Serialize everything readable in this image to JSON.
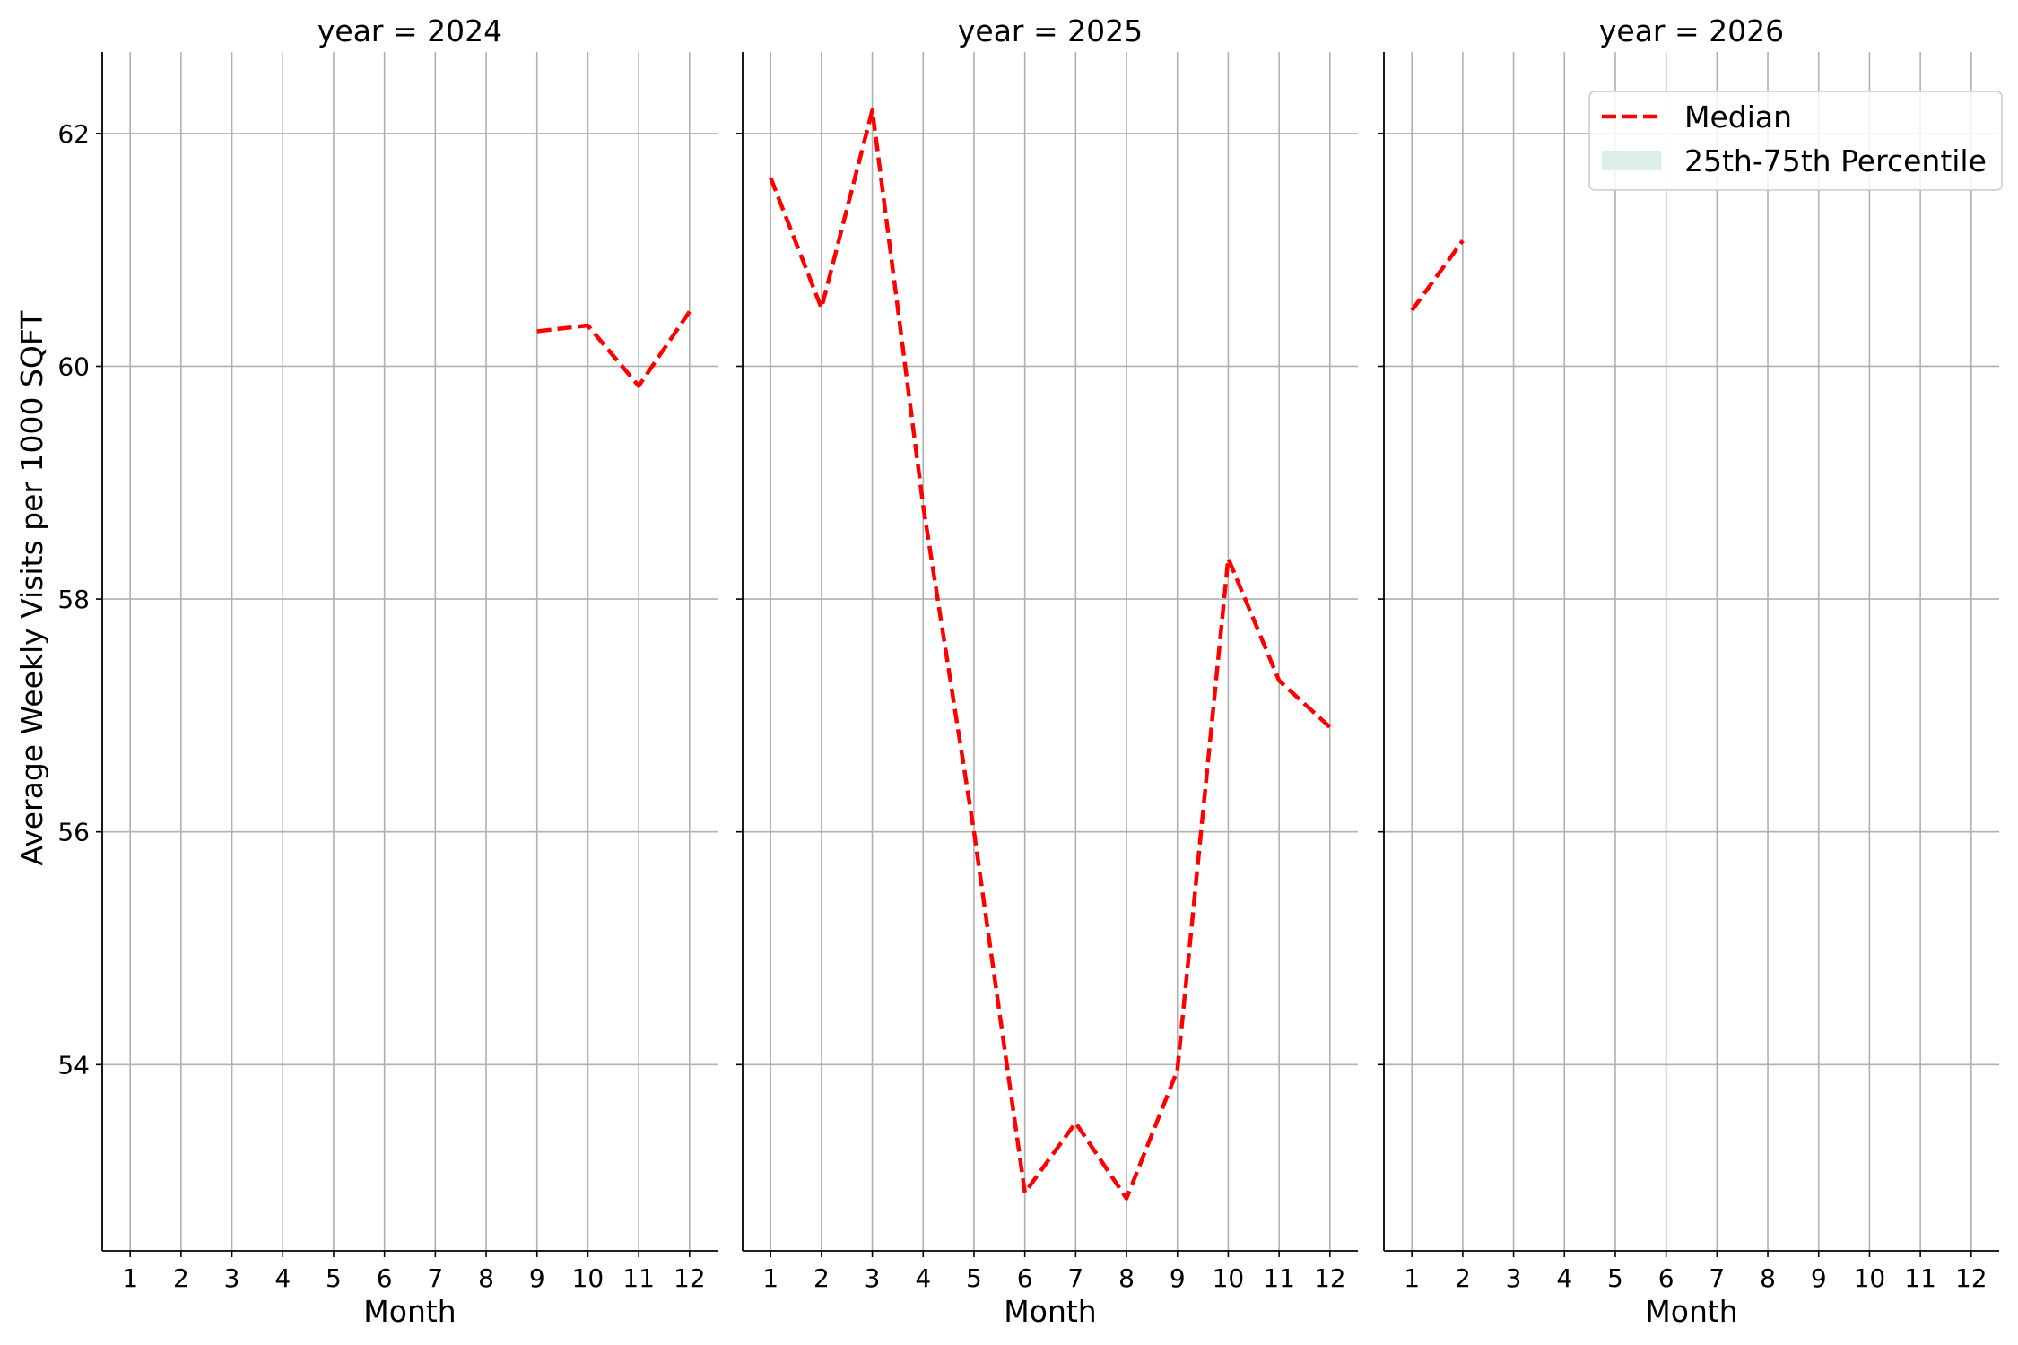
{
  "chart_data": {
    "type": "line",
    "facet_variable": "year",
    "ylabel": "Average Weekly Visits per 1000 SQFT",
    "xlabel": "Month",
    "x_ticks": [
      1,
      2,
      3,
      4,
      5,
      6,
      7,
      8,
      9,
      10,
      11,
      12
    ],
    "y_ticks": [
      54,
      56,
      58,
      60,
      62
    ],
    "ylim": [
      52.4,
      62.7
    ],
    "xlim": [
      0.45,
      12.55
    ],
    "grid": true,
    "legend": {
      "placement": "top-right",
      "entries": [
        {
          "label": "Median",
          "style": "dashed-line",
          "color": "#ff0000"
        },
        {
          "label": "25th-75th Percentile",
          "style": "band",
          "color": "#dcefe9"
        }
      ]
    },
    "series_color": "#ff0000",
    "panels": [
      {
        "title": "year = 2024",
        "median": [
          {
            "x": 9,
            "y": 60.3
          },
          {
            "x": 10,
            "y": 60.35
          },
          {
            "x": 11,
            "y": 59.83
          },
          {
            "x": 12,
            "y": 60.47
          }
        ]
      },
      {
        "title": "year = 2025",
        "median": [
          {
            "x": 1,
            "y": 61.62
          },
          {
            "x": 2,
            "y": 60.5
          },
          {
            "x": 3,
            "y": 62.2
          },
          {
            "x": 4,
            "y": 58.8
          },
          {
            "x": 5,
            "y": 56.0
          },
          {
            "x": 6,
            "y": 52.9
          },
          {
            "x": 7,
            "y": 53.5
          },
          {
            "x": 8,
            "y": 52.85
          },
          {
            "x": 9,
            "y": 53.95
          },
          {
            "x": 10,
            "y": 58.35
          },
          {
            "x": 11,
            "y": 57.3
          },
          {
            "x": 12,
            "y": 56.9
          }
        ]
      },
      {
        "title": "year = 2026",
        "median": [
          {
            "x": 1,
            "y": 60.48
          },
          {
            "x": 2,
            "y": 61.08
          }
        ]
      }
    ]
  }
}
